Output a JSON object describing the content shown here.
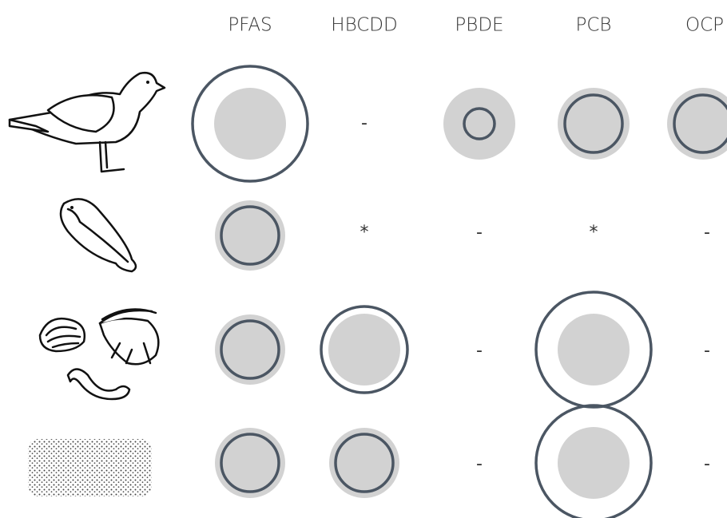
{
  "columns": [
    "PFAS",
    "HBCDD",
    "PBDE",
    "PCB",
    "OCP"
  ],
  "rows": [
    [
      null,
      "-",
      null,
      null,
      null
    ],
    [
      null,
      "*",
      "-",
      "*",
      "-"
    ],
    [
      null,
      null,
      "-",
      null,
      "-"
    ],
    [
      null,
      null,
      "-",
      null,
      "-"
    ]
  ]
}
